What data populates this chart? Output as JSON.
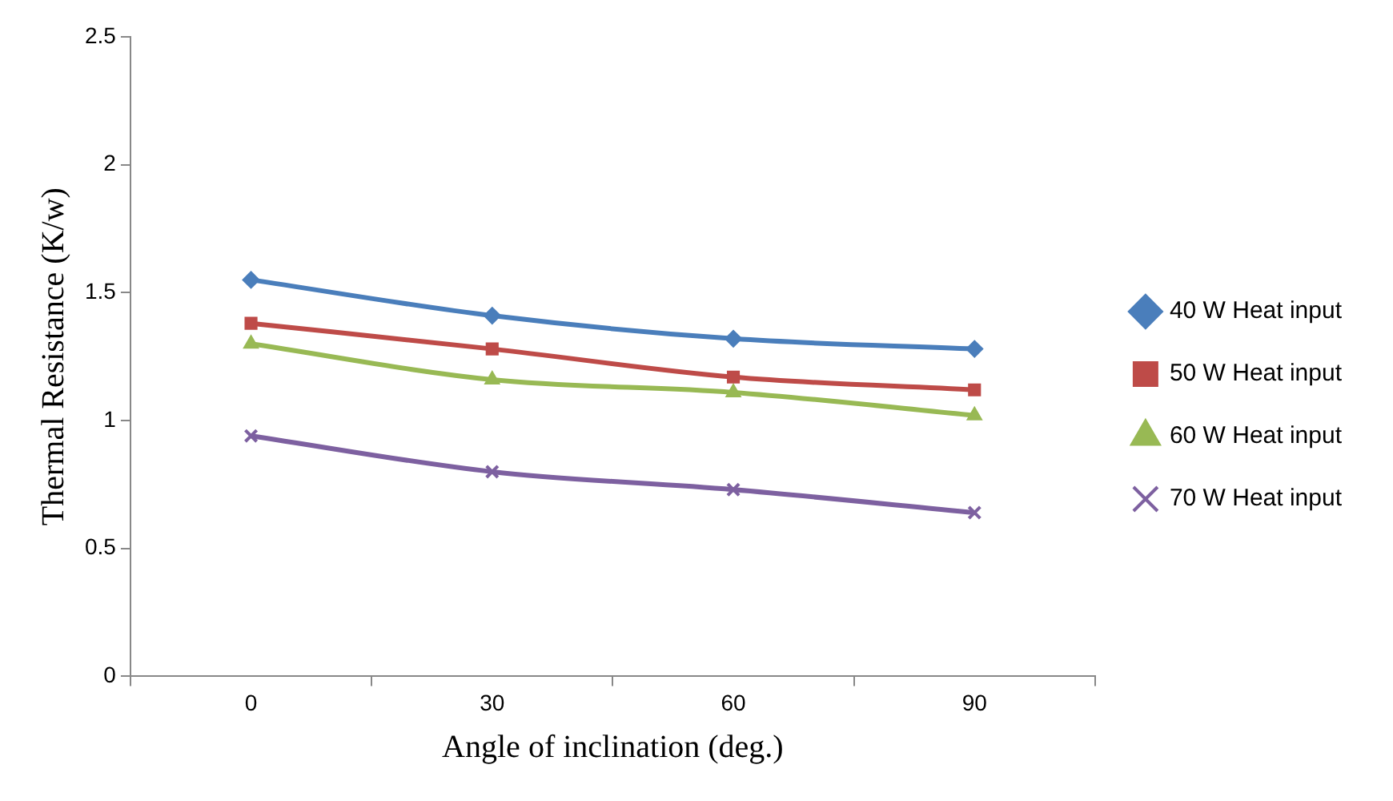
{
  "chart_data": {
    "type": "line",
    "xlabel": "Angle of inclination (deg.)",
    "ylabel": "Thermal Resistance (K/w)",
    "categories": [
      "0",
      "30",
      "60",
      "90"
    ],
    "series": [
      {
        "name": "40 W Heat input",
        "color": "#4a7ebb",
        "marker": "diamond",
        "values": [
          1.55,
          1.41,
          1.32,
          1.28
        ]
      },
      {
        "name": "50 W Heat input",
        "color": "#be4b48",
        "marker": "square",
        "values": [
          1.38,
          1.28,
          1.17,
          1.12
        ]
      },
      {
        "name": "60 W Heat input",
        "color": "#98b954",
        "marker": "triangle",
        "values": [
          1.3,
          1.16,
          1.11,
          1.02
        ]
      },
      {
        "name": "70 W Heat input",
        "color": "#7d60a0",
        "marker": "cross",
        "values": [
          0.94,
          0.8,
          0.73,
          0.64
        ]
      }
    ],
    "ylim": [
      0,
      2.5
    ],
    "yticks": [
      0,
      0.5,
      1,
      1.5,
      2,
      2.5
    ],
    "grid": false,
    "legend": "right"
  }
}
